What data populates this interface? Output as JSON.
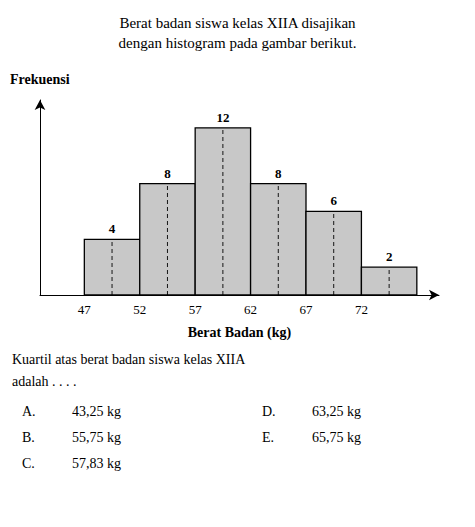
{
  "chart_data": {
    "type": "histogram",
    "title": "Berat badan siswa kelas XIIA disajikan\ndengan histogram pada gambar berikut.",
    "xlabel": "Berat Badan (kg)",
    "ylabel": "Frekuensi",
    "bins": [
      47,
      52,
      57,
      62,
      67,
      72,
      77
    ],
    "values": [
      4,
      8,
      12,
      8,
      6,
      2
    ],
    "color": "#c8c8c8",
    "xlim": [
      43,
      79
    ],
    "xticks": [
      47,
      52,
      57,
      62,
      67,
      72
    ],
    "ylim": [
      0,
      14
    ],
    "tick_labels": "x",
    "data_labels": true,
    "grid": false,
    "annotations": [
      "Kuartil atas berat badan siswa kelas XIIA",
      "adalah . . . .",
      [
        "A.",
        "43,25 kg"
      ],
      [
        "B.",
        "55,75 kg"
      ],
      [
        "C.",
        "57,83 kg"
      ],
      [
        "D.",
        "63,25 kg"
      ],
      [
        "E.",
        "65,75 kg"
      ]
    ]
  }
}
